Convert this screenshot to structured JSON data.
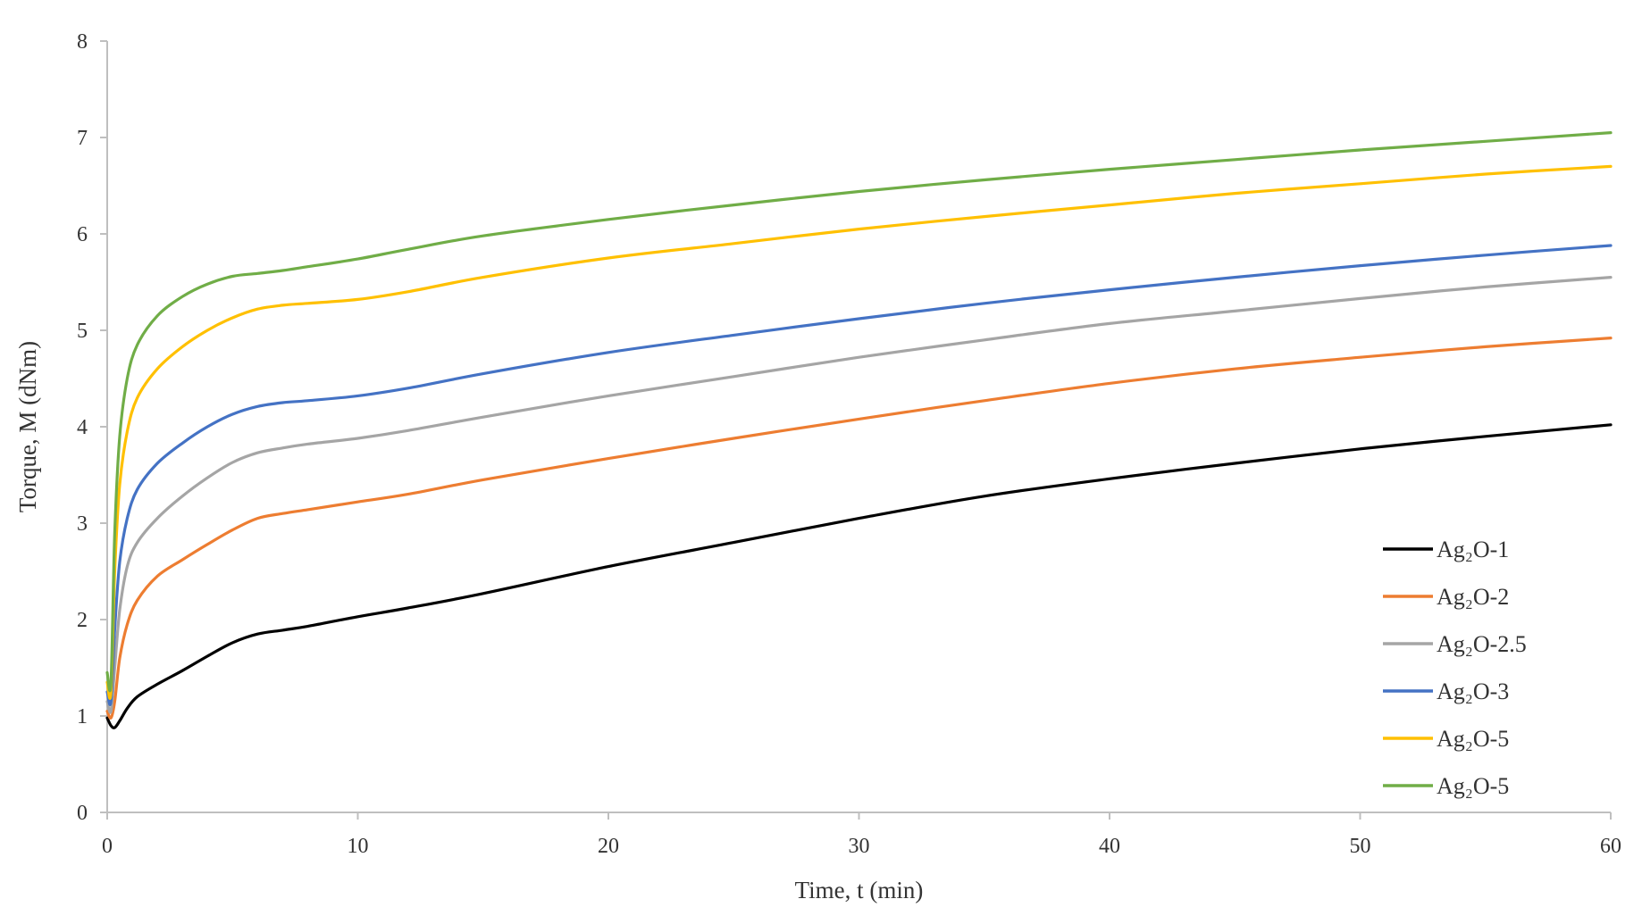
{
  "chart_data": {
    "type": "line",
    "xlabel": "Time, t (min)",
    "ylabel": "Torque, M (dNm)",
    "xlim": [
      0,
      60
    ],
    "ylim": [
      0,
      8
    ],
    "xticks": [
      "0",
      "10",
      "20",
      "30",
      "40",
      "50",
      "60"
    ],
    "yticks": [
      "0",
      "1",
      "2",
      "3",
      "4",
      "5",
      "6",
      "7",
      "8"
    ],
    "grid": false,
    "legend": "bottom-right",
    "series": [
      {
        "name": "Ag₂O-1",
        "color": "#000000",
        "x": [
          0,
          0.15,
          0.3,
          0.5,
          0.8,
          1.2,
          2,
          3,
          4,
          5,
          6,
          7,
          8,
          10,
          12,
          15,
          20,
          25,
          30,
          35,
          40,
          45,
          50,
          55,
          60
        ],
        "y": [
          0.98,
          0.9,
          0.88,
          0.95,
          1.08,
          1.2,
          1.33,
          1.47,
          1.62,
          1.76,
          1.85,
          1.89,
          1.93,
          2.03,
          2.12,
          2.27,
          2.55,
          2.8,
          3.05,
          3.28,
          3.46,
          3.62,
          3.77,
          3.9,
          4.02
        ]
      },
      {
        "name": "Ag₂O-2",
        "color": "#ed7d31",
        "x": [
          0,
          0.15,
          0.3,
          0.5,
          0.8,
          1.2,
          2,
          3,
          4,
          5,
          6,
          7,
          8,
          10,
          12,
          15,
          20,
          25,
          30,
          35,
          40,
          45,
          50,
          55,
          60
        ],
        "y": [
          1.05,
          0.98,
          1.15,
          1.6,
          1.95,
          2.2,
          2.45,
          2.62,
          2.78,
          2.93,
          3.05,
          3.1,
          3.14,
          3.22,
          3.3,
          3.45,
          3.67,
          3.88,
          4.08,
          4.27,
          4.45,
          4.6,
          4.72,
          4.83,
          4.92
        ]
      },
      {
        "name": "Ag₂O-2.5",
        "color": "#a5a5a5",
        "x": [
          0,
          0.15,
          0.3,
          0.5,
          0.8,
          1.2,
          2,
          3,
          4,
          5,
          6,
          7,
          8,
          10,
          12,
          15,
          20,
          25,
          30,
          35,
          40,
          45,
          50,
          55,
          60
        ],
        "y": [
          1.15,
          1.05,
          1.5,
          2.1,
          2.55,
          2.8,
          3.05,
          3.28,
          3.47,
          3.63,
          3.73,
          3.78,
          3.82,
          3.88,
          3.96,
          4.1,
          4.32,
          4.52,
          4.72,
          4.9,
          5.07,
          5.2,
          5.33,
          5.45,
          5.55
        ]
      },
      {
        "name": "Ag₂O-3",
        "color": "#4472c4",
        "x": [
          0,
          0.15,
          0.3,
          0.5,
          0.8,
          1.2,
          2,
          3,
          4,
          5,
          6,
          7,
          8,
          10,
          12,
          15,
          20,
          25,
          30,
          35,
          40,
          45,
          50,
          55,
          60
        ],
        "y": [
          1.25,
          1.15,
          1.9,
          2.6,
          3.05,
          3.35,
          3.62,
          3.83,
          4.0,
          4.13,
          4.21,
          4.25,
          4.27,
          4.32,
          4.4,
          4.55,
          4.77,
          4.95,
          5.12,
          5.28,
          5.42,
          5.55,
          5.67,
          5.78,
          5.88
        ]
      },
      {
        "name": "Ag₂O-5",
        "color": "#ffc000",
        "x": [
          0,
          0.15,
          0.3,
          0.5,
          0.8,
          1.2,
          2,
          3,
          4,
          5,
          6,
          7,
          8,
          10,
          12,
          15,
          20,
          25,
          30,
          35,
          40,
          45,
          50,
          55,
          60
        ],
        "y": [
          1.35,
          1.25,
          2.5,
          3.4,
          3.95,
          4.3,
          4.6,
          4.83,
          5.0,
          5.13,
          5.22,
          5.26,
          5.28,
          5.32,
          5.4,
          5.55,
          5.75,
          5.9,
          6.05,
          6.18,
          6.3,
          6.42,
          6.52,
          6.62,
          6.7
        ]
      },
      {
        "name": "Ag₂O-5",
        "color": "#70ad47",
        "x": [
          0,
          0.15,
          0.3,
          0.5,
          0.8,
          1.2,
          2,
          3,
          4,
          5,
          6,
          7,
          8,
          10,
          12,
          15,
          20,
          25,
          30,
          35,
          40,
          45,
          50,
          55,
          60
        ],
        "y": [
          1.45,
          1.35,
          2.9,
          3.9,
          4.5,
          4.85,
          5.15,
          5.35,
          5.48,
          5.56,
          5.59,
          5.62,
          5.66,
          5.74,
          5.84,
          5.98,
          6.15,
          6.3,
          6.44,
          6.56,
          6.67,
          6.77,
          6.87,
          6.96,
          7.05
        ]
      }
    ]
  }
}
